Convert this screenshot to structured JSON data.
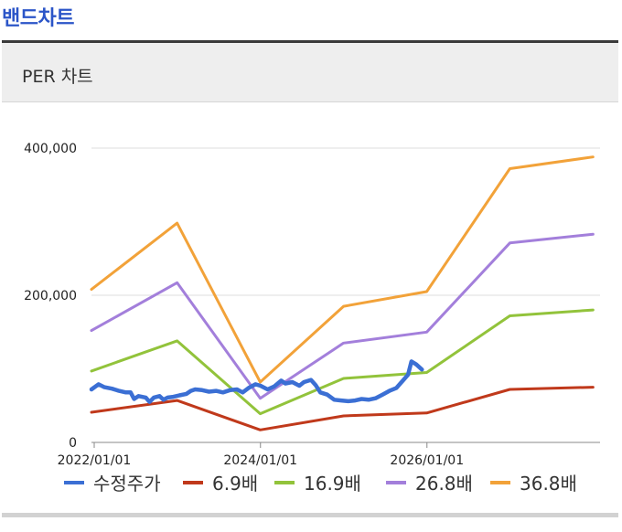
{
  "page": {
    "title": "밴드차트"
  },
  "section": {
    "title": "PER 차트"
  },
  "colors": {
    "title": "#2b55c8",
    "price": "#3b6fd4",
    "per_6_9": "#c0391b",
    "per_16_9": "#92c33b",
    "per_26_8": "#a37fdb",
    "per_36_8": "#f2a239",
    "grid": "#dddddd"
  },
  "chart_data": {
    "type": "line",
    "title": "",
    "xlabel": "",
    "ylabel": "",
    "x_axis_type": "date",
    "x_range": [
      "2021-12-20",
      "2028-01-31"
    ],
    "ylim": [
      0,
      400000
    ],
    "y_ticks": [
      0,
      200000,
      400000
    ],
    "y_tick_labels": [
      "0",
      "200,000",
      "400,000"
    ],
    "x_ticks": [
      "2022-01-01",
      "2024-01-01",
      "2026-01-01"
    ],
    "x_tick_labels": [
      "2022/01/01",
      "2024/01/01",
      "2026/01/01"
    ],
    "grid": "horizontal",
    "legend_position": "bottom",
    "series": [
      {
        "name": "수정주가",
        "color_key": "price",
        "points": [
          [
            "2021-12-20",
            72000
          ],
          [
            "2022-01-20",
            79000
          ],
          [
            "2022-02-15",
            75000
          ],
          [
            "2022-03-20",
            73000
          ],
          [
            "2022-04-20",
            70000
          ],
          [
            "2022-05-20",
            68000
          ],
          [
            "2022-06-10",
            68000
          ],
          [
            "2022-06-25",
            59000
          ],
          [
            "2022-07-15",
            63000
          ],
          [
            "2022-08-15",
            61000
          ],
          [
            "2022-09-01",
            55000
          ],
          [
            "2022-09-20",
            61000
          ],
          [
            "2022-10-15",
            63000
          ],
          [
            "2022-11-01",
            58000
          ],
          [
            "2022-11-20",
            61000
          ],
          [
            "2022-12-15",
            62000
          ],
          [
            "2023-01-10",
            64000
          ],
          [
            "2023-02-10",
            66000
          ],
          [
            "2023-03-01",
            70000
          ],
          [
            "2023-03-20",
            72000
          ],
          [
            "2023-04-20",
            71000
          ],
          [
            "2023-05-20",
            69000
          ],
          [
            "2023-06-20",
            70000
          ],
          [
            "2023-07-20",
            68000
          ],
          [
            "2023-08-20",
            71000
          ],
          [
            "2023-09-20",
            72000
          ],
          [
            "2023-10-15",
            68000
          ],
          [
            "2023-11-10",
            74000
          ],
          [
            "2023-12-10",
            79000
          ],
          [
            "2024-01-01",
            77000
          ],
          [
            "2024-02-01",
            72000
          ],
          [
            "2024-03-01",
            76000
          ],
          [
            "2024-04-01",
            84000
          ],
          [
            "2024-04-20",
            80000
          ],
          [
            "2024-05-20",
            82000
          ],
          [
            "2024-06-20",
            77000
          ],
          [
            "2024-07-10",
            82000
          ],
          [
            "2024-08-10",
            85000
          ],
          [
            "2024-08-30",
            78000
          ],
          [
            "2024-09-20",
            68000
          ],
          [
            "2024-10-20",
            65000
          ],
          [
            "2024-11-20",
            58000
          ],
          [
            "2024-12-20",
            57000
          ],
          [
            "2025-01-20",
            56000
          ],
          [
            "2025-02-20",
            57000
          ],
          [
            "2025-03-20",
            59000
          ],
          [
            "2025-04-20",
            58000
          ],
          [
            "2025-05-20",
            60000
          ],
          [
            "2025-06-20",
            65000
          ],
          [
            "2025-07-20",
            70000
          ],
          [
            "2025-08-20",
            74000
          ],
          [
            "2025-09-20",
            85000
          ],
          [
            "2025-10-10",
            92000
          ],
          [
            "2025-10-25",
            110000
          ],
          [
            "2025-11-15",
            106000
          ],
          [
            "2025-12-10",
            99000
          ]
        ]
      },
      {
        "name": "6.9배",
        "color_key": "per_6_9",
        "points": [
          [
            "2021-12-20",
            41000
          ],
          [
            "2022-12-31",
            57000
          ],
          [
            "2023-12-31",
            17000
          ],
          [
            "2024-12-31",
            36000
          ],
          [
            "2025-12-31",
            40000
          ],
          [
            "2026-12-31",
            72000
          ],
          [
            "2027-12-31",
            75000
          ]
        ]
      },
      {
        "name": "16.9배",
        "color_key": "per_16_9",
        "points": [
          [
            "2021-12-20",
            97000
          ],
          [
            "2022-12-31",
            138000
          ],
          [
            "2023-12-31",
            39000
          ],
          [
            "2024-12-31",
            87000
          ],
          [
            "2025-12-31",
            95000
          ],
          [
            "2026-12-31",
            172000
          ],
          [
            "2027-12-31",
            180000
          ]
        ]
      },
      {
        "name": "26.8배",
        "color_key": "per_26_8",
        "points": [
          [
            "2021-12-20",
            152000
          ],
          [
            "2022-12-31",
            217000
          ],
          [
            "2023-12-31",
            60000
          ],
          [
            "2024-12-31",
            135000
          ],
          [
            "2025-12-31",
            150000
          ],
          [
            "2026-12-31",
            271000
          ],
          [
            "2027-12-31",
            283000
          ]
        ]
      },
      {
        "name": "36.8배",
        "color_key": "per_36_8",
        "points": [
          [
            "2021-12-20",
            208000
          ],
          [
            "2022-12-31",
            298000
          ],
          [
            "2023-12-31",
            82000
          ],
          [
            "2024-12-31",
            185000
          ],
          [
            "2025-12-31",
            205000
          ],
          [
            "2026-12-31",
            372000
          ],
          [
            "2027-12-31",
            388000
          ]
        ]
      }
    ]
  }
}
